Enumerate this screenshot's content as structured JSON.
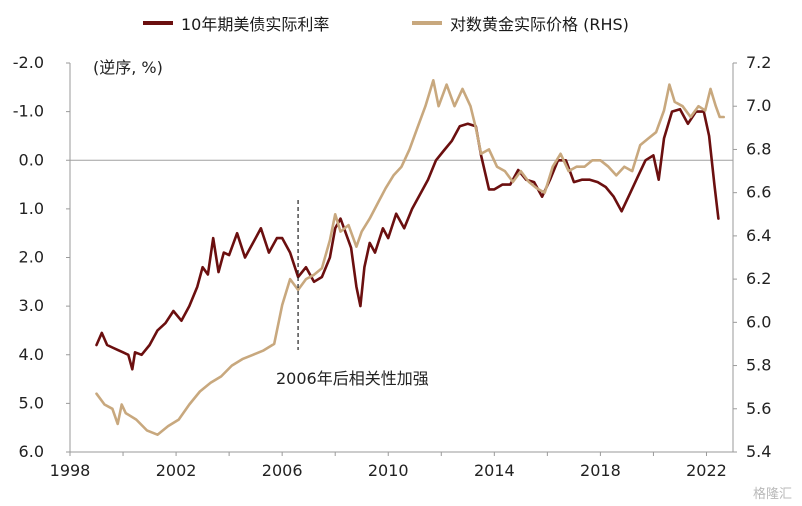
{
  "chart_data": {
    "type": "line",
    "title": "",
    "left_axis": {
      "label": "(逆序, %)",
      "inverted": true,
      "range": [
        -2.0,
        6.0
      ],
      "ticks": [
        "-2.0",
        "-1.0",
        "0.0",
        "1.0",
        "2.0",
        "3.0",
        "4.0",
        "5.0",
        "6.0"
      ]
    },
    "right_axis": {
      "range": [
        5.4,
        7.2
      ],
      "ticks": [
        "7.2",
        "7.0",
        "6.8",
        "6.6",
        "6.4",
        "6.2",
        "6.0",
        "5.8",
        "5.6",
        "5.4"
      ]
    },
    "x_axis": {
      "range": [
        1998,
        2023
      ],
      "ticks": [
        "1998",
        "2002",
        "2006",
        "2010",
        "2014",
        "2018",
        "2022"
      ]
    },
    "zero_line": 0.0,
    "annotation": {
      "text": "2006年后相关性加强",
      "x": 2006.6
    },
    "series": [
      {
        "name": "10年期美债实际利率",
        "axis": "left",
        "color": "#6b0f0f",
        "points": [
          [
            1999.0,
            3.8
          ],
          [
            1999.2,
            3.55
          ],
          [
            1999.4,
            3.8
          ],
          [
            1999.6,
            3.85
          ],
          [
            1999.8,
            3.9
          ],
          [
            2000.0,
            3.95
          ],
          [
            2000.2,
            4.0
          ],
          [
            2000.35,
            4.3
          ],
          [
            2000.45,
            3.95
          ],
          [
            2000.7,
            4.0
          ],
          [
            2001.0,
            3.8
          ],
          [
            2001.3,
            3.5
          ],
          [
            2001.6,
            3.35
          ],
          [
            2001.9,
            3.1
          ],
          [
            2002.2,
            3.3
          ],
          [
            2002.5,
            3.0
          ],
          [
            2002.8,
            2.6
          ],
          [
            2003.0,
            2.2
          ],
          [
            2003.2,
            2.35
          ],
          [
            2003.4,
            1.6
          ],
          [
            2003.6,
            2.3
          ],
          [
            2003.8,
            1.9
          ],
          [
            2004.0,
            1.95
          ],
          [
            2004.3,
            1.5
          ],
          [
            2004.6,
            2.0
          ],
          [
            2004.9,
            1.7
          ],
          [
            2005.2,
            1.4
          ],
          [
            2005.5,
            1.9
          ],
          [
            2005.8,
            1.6
          ],
          [
            2006.0,
            1.6
          ],
          [
            2006.3,
            1.9
          ],
          [
            2006.6,
            2.4
          ],
          [
            2006.9,
            2.2
          ],
          [
            2007.2,
            2.5
          ],
          [
            2007.5,
            2.4
          ],
          [
            2007.8,
            2.0
          ],
          [
            2008.0,
            1.4
          ],
          [
            2008.2,
            1.2
          ],
          [
            2008.4,
            1.5
          ],
          [
            2008.6,
            1.8
          ],
          [
            2008.8,
            2.6
          ],
          [
            2008.95,
            3.0
          ],
          [
            2009.1,
            2.2
          ],
          [
            2009.3,
            1.7
          ],
          [
            2009.5,
            1.9
          ],
          [
            2009.8,
            1.4
          ],
          [
            2010.0,
            1.6
          ],
          [
            2010.3,
            1.1
          ],
          [
            2010.6,
            1.4
          ],
          [
            2010.9,
            1.0
          ],
          [
            2011.2,
            0.7
          ],
          [
            2011.5,
            0.4
          ],
          [
            2011.8,
            0.0
          ],
          [
            2012.1,
            -0.2
          ],
          [
            2012.4,
            -0.4
          ],
          [
            2012.7,
            -0.7
          ],
          [
            2013.0,
            -0.75
          ],
          [
            2013.3,
            -0.7
          ],
          [
            2013.5,
            -0.1
          ],
          [
            2013.8,
            0.6
          ],
          [
            2014.0,
            0.6
          ],
          [
            2014.3,
            0.5
          ],
          [
            2014.6,
            0.5
          ],
          [
            2014.9,
            0.2
          ],
          [
            2015.2,
            0.4
          ],
          [
            2015.5,
            0.45
          ],
          [
            2015.8,
            0.75
          ],
          [
            2016.1,
            0.4
          ],
          [
            2016.4,
            0.0
          ],
          [
            2016.7,
            0.0
          ],
          [
            2017.0,
            0.45
          ],
          [
            2017.3,
            0.4
          ],
          [
            2017.6,
            0.4
          ],
          [
            2017.9,
            0.45
          ],
          [
            2018.2,
            0.55
          ],
          [
            2018.5,
            0.75
          ],
          [
            2018.8,
            1.05
          ],
          [
            2019.1,
            0.7
          ],
          [
            2019.4,
            0.35
          ],
          [
            2019.7,
            0.0
          ],
          [
            2020.0,
            -0.1
          ],
          [
            2020.2,
            0.4
          ],
          [
            2020.4,
            -0.45
          ],
          [
            2020.7,
            -1.0
          ],
          [
            2021.0,
            -1.05
          ],
          [
            2021.3,
            -0.75
          ],
          [
            2021.6,
            -1.0
          ],
          [
            2021.9,
            -1.0
          ],
          [
            2022.1,
            -0.5
          ],
          [
            2022.3,
            0.5
          ],
          [
            2022.45,
            1.2
          ]
        ]
      },
      {
        "name": "对数黄金实际价格 (RHS)",
        "axis": "right",
        "color": "#c8a87e",
        "points": [
          [
            1999.0,
            5.67
          ],
          [
            1999.3,
            5.62
          ],
          [
            1999.6,
            5.6
          ],
          [
            1999.8,
            5.53
          ],
          [
            1999.95,
            5.62
          ],
          [
            2000.1,
            5.58
          ],
          [
            2000.5,
            5.55
          ],
          [
            2000.9,
            5.5
          ],
          [
            2001.3,
            5.48
          ],
          [
            2001.7,
            5.52
          ],
          [
            2002.1,
            5.55
          ],
          [
            2002.5,
            5.62
          ],
          [
            2002.9,
            5.68
          ],
          [
            2003.3,
            5.72
          ],
          [
            2003.7,
            5.75
          ],
          [
            2004.1,
            5.8
          ],
          [
            2004.5,
            5.83
          ],
          [
            2004.9,
            5.85
          ],
          [
            2005.3,
            5.87
          ],
          [
            2005.7,
            5.9
          ],
          [
            2006.0,
            6.08
          ],
          [
            2006.3,
            6.2
          ],
          [
            2006.6,
            6.15
          ],
          [
            2006.9,
            6.2
          ],
          [
            2007.2,
            6.22
          ],
          [
            2007.5,
            6.25
          ],
          [
            2007.8,
            6.38
          ],
          [
            2008.0,
            6.5
          ],
          [
            2008.2,
            6.42
          ],
          [
            2008.5,
            6.45
          ],
          [
            2008.8,
            6.35
          ],
          [
            2009.0,
            6.42
          ],
          [
            2009.3,
            6.48
          ],
          [
            2009.6,
            6.55
          ],
          [
            2009.9,
            6.62
          ],
          [
            2010.2,
            6.68
          ],
          [
            2010.5,
            6.72
          ],
          [
            2010.8,
            6.8
          ],
          [
            2011.1,
            6.9
          ],
          [
            2011.4,
            7.0
          ],
          [
            2011.7,
            7.12
          ],
          [
            2011.9,
            7.0
          ],
          [
            2012.2,
            7.1
          ],
          [
            2012.5,
            7.0
          ],
          [
            2012.8,
            7.08
          ],
          [
            2013.1,
            7.0
          ],
          [
            2013.3,
            6.9
          ],
          [
            2013.5,
            6.78
          ],
          [
            2013.8,
            6.8
          ],
          [
            2014.1,
            6.72
          ],
          [
            2014.4,
            6.7
          ],
          [
            2014.7,
            6.65
          ],
          [
            2015.0,
            6.7
          ],
          [
            2015.3,
            6.65
          ],
          [
            2015.6,
            6.62
          ],
          [
            2015.9,
            6.6
          ],
          [
            2016.2,
            6.72
          ],
          [
            2016.5,
            6.78
          ],
          [
            2016.8,
            6.7
          ],
          [
            2017.1,
            6.72
          ],
          [
            2017.4,
            6.72
          ],
          [
            2017.7,
            6.75
          ],
          [
            2018.0,
            6.75
          ],
          [
            2018.3,
            6.72
          ],
          [
            2018.6,
            6.68
          ],
          [
            2018.9,
            6.72
          ],
          [
            2019.2,
            6.7
          ],
          [
            2019.5,
            6.82
          ],
          [
            2019.8,
            6.85
          ],
          [
            2020.1,
            6.88
          ],
          [
            2020.4,
            6.98
          ],
          [
            2020.6,
            7.1
          ],
          [
            2020.8,
            7.02
          ],
          [
            2021.1,
            7.0
          ],
          [
            2021.4,
            6.95
          ],
          [
            2021.7,
            7.0
          ],
          [
            2021.95,
            6.98
          ],
          [
            2022.15,
            7.08
          ],
          [
            2022.35,
            7.0
          ],
          [
            2022.5,
            6.95
          ],
          [
            2022.65,
            6.95
          ]
        ]
      }
    ]
  },
  "legend": {
    "items": [
      {
        "label": "10年期美债实际利率",
        "color": "#6b0f0f"
      },
      {
        "label": "对数黄金实际价格 (RHS)",
        "color": "#c8a87e"
      }
    ]
  },
  "watermark": "格隆汇"
}
